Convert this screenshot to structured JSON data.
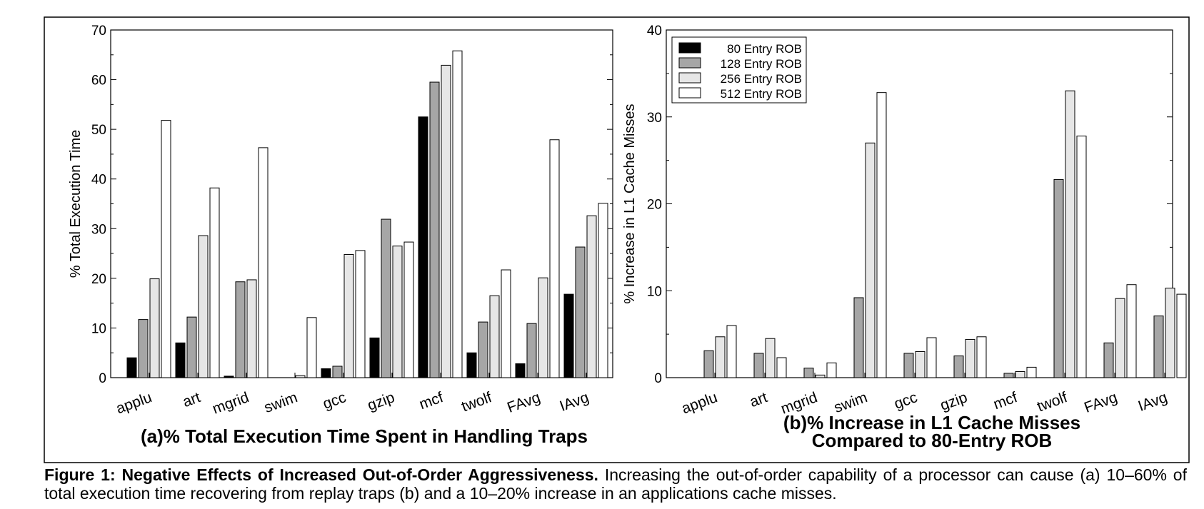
{
  "chart_data": [
    {
      "type": "bar",
      "title": "(a)% Total Execution Time Spent in Handling Traps",
      "ylabel": "% Total Execution Time",
      "xlabel": "",
      "ylim": [
        0,
        70
      ],
      "yticks": [
        0,
        10,
        20,
        30,
        40,
        50,
        60,
        70
      ],
      "categories": [
        "applu",
        "art",
        "mgrid",
        "swim",
        "gcc",
        "gzip",
        "mcf",
        "twolf",
        "FAvg",
        "IAvg"
      ],
      "series": [
        {
          "name": "80 Entry ROB",
          "color": "#000000",
          "values": [
            4,
            7,
            0.3,
            0,
            1.8,
            8,
            52.5,
            5,
            2.8,
            16.8
          ]
        },
        {
          "name": "128 Entry ROB",
          "color": "#a6a6a6",
          "values": [
            11.7,
            12.2,
            19.3,
            0,
            2.3,
            31.9,
            59.5,
            11.2,
            10.9,
            26.3
          ]
        },
        {
          "name": "256 Entry ROB",
          "color": "#e6e6e6",
          "values": [
            19.9,
            28.6,
            19.7,
            0.4,
            24.8,
            26.5,
            62.9,
            16.5,
            20.1,
            32.6
          ]
        },
        {
          "name": "512 Entry ROB",
          "color": "#ffffff",
          "values": [
            51.8,
            38.2,
            46.3,
            12.1,
            25.6,
            27.3,
            65.8,
            21.7,
            47.9,
            35.1
          ]
        }
      ],
      "grid": false,
      "legend": "none"
    },
    {
      "type": "bar",
      "title": [
        "(b)% Increase in L1 Cache Misses",
        "Compared to 80-Entry ROB"
      ],
      "ylabel": "% Increase in L1 Cache Misses",
      "xlabel": "",
      "ylim": [
        0,
        40
      ],
      "yticks": [
        0,
        10,
        20,
        30,
        40
      ],
      "categories": [
        "applu",
        "art",
        "mgrid",
        "swim",
        "gcc",
        "gzip",
        "mcf",
        "twolf",
        "FAvg",
        "IAvg"
      ],
      "series": [
        {
          "name": "80 Entry ROB",
          "color": "#000000",
          "values": [
            0,
            0,
            0,
            0,
            0,
            0,
            0,
            0,
            0,
            0
          ]
        },
        {
          "name": "128 Entry ROB",
          "color": "#a6a6a6",
          "values": [
            3.1,
            2.8,
            1.1,
            9.2,
            2.8,
            2.5,
            0.5,
            22.8,
            4.0,
            7.1
          ]
        },
        {
          "name": "256 Entry ROB",
          "color": "#e6e6e6",
          "values": [
            4.7,
            4.5,
            0.3,
            27.0,
            3.0,
            4.4,
            0.7,
            33.0,
            9.1,
            10.3
          ]
        },
        {
          "name": "512 Entry ROB",
          "color": "#ffffff",
          "values": [
            6.0,
            2.3,
            1.7,
            32.8,
            4.6,
            4.7,
            1.2,
            27.8,
            10.7,
            9.6
          ]
        }
      ],
      "grid": false,
      "legend": "top-left"
    }
  ],
  "caption": {
    "bold": "Figure 1: Negative Effects of Increased Out-of-Order Aggressiveness.",
    "text": " Increasing the out-of-order capability of a processor can cause (a) 10–60% of total execution time recovering from replay traps (b) and a 10–20% increase in an applications cache misses."
  }
}
